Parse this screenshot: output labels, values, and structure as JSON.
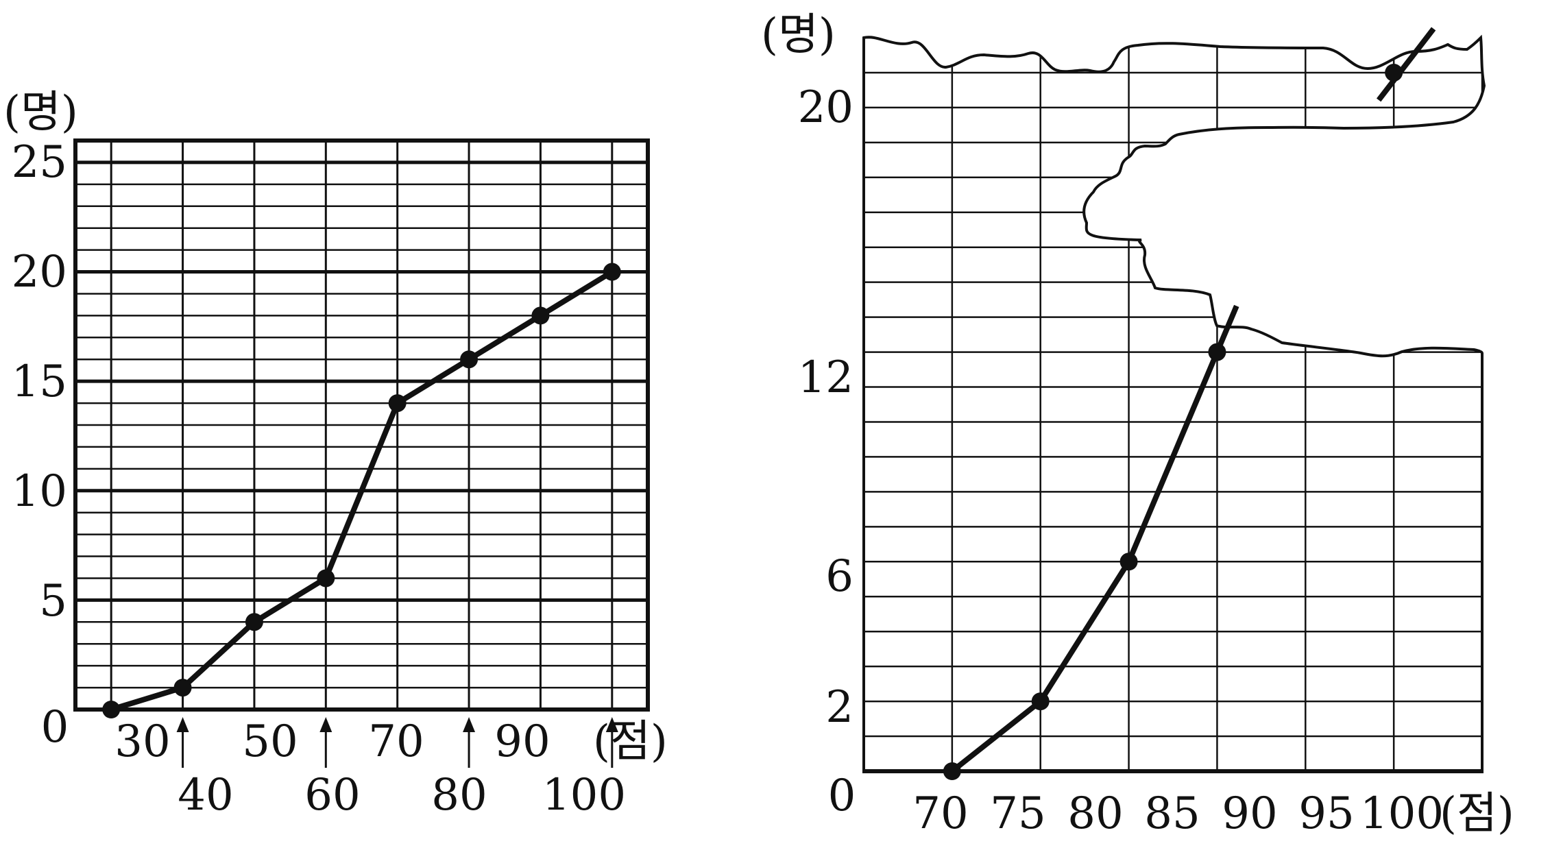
{
  "colors": {
    "background": "#ffffff",
    "ink": "#111111"
  },
  "chart_data": [
    {
      "type": "line",
      "title": "",
      "xlabel": "",
      "ylabel": "",
      "x_unit": "(점)",
      "y_unit": "(명)",
      "xlim": [
        25,
        105
      ],
      "ylim": [
        0,
        26
      ],
      "x_ticks_upper": [
        "30",
        "50",
        "70",
        "90"
      ],
      "x_ticks_lower": [
        "40",
        "60",
        "80",
        "100"
      ],
      "x_arrow_at": [
        40,
        60,
        80,
        100
      ],
      "y_ticks": [
        "0",
        "5",
        "10",
        "15",
        "20",
        "25"
      ],
      "grid": true,
      "series": [
        {
          "x": [
            30,
            40,
            50,
            60,
            70,
            80,
            90,
            100
          ],
          "y": [
            0,
            1,
            4,
            6,
            14,
            16,
            18,
            20
          ]
        }
      ]
    },
    {
      "type": "line",
      "title": "",
      "xlabel": "",
      "ylabel": "",
      "x_unit": "(점)",
      "y_unit": "(명)",
      "xlim": [
        65,
        100
      ],
      "ylim": [
        0,
        21
      ],
      "x_ticks": [
        "70",
        "75",
        "80",
        "85",
        "90",
        "95",
        "100"
      ],
      "y_ticks": [
        "0",
        "2",
        "6",
        "12",
        "20"
      ],
      "grid": true,
      "torn_region": "upper right part of the graph paper is torn away",
      "series": [
        {
          "x": [
            70,
            75,
            80,
            85,
            95
          ],
          "y": [
            0,
            2,
            6,
            12,
            20
          ]
        }
      ]
    }
  ]
}
